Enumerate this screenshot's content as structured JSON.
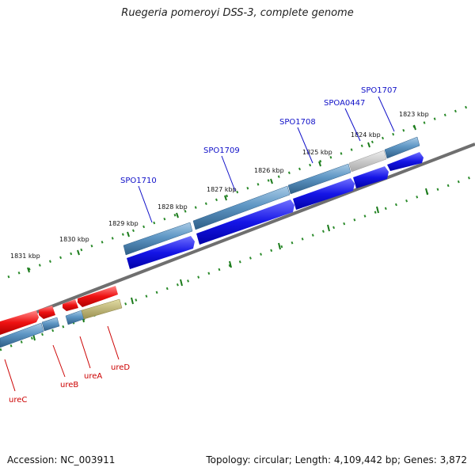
{
  "title": "Ruegeria pomeroyi DSS-3, complete genome",
  "footer": {
    "accession": "Accession: NC_003911",
    "genome_info": "Topology: circular; Length: 4,109,442 bp; Genes: 3,872"
  },
  "colors": {
    "forward_gene": "#1010e0",
    "reverse_gene": "#ee1111",
    "annotated_gene": "#4a86b8",
    "unannotated_gene": "#c0c0c0",
    "highlight_gene": "#b8b070",
    "backbone": "#777777",
    "tick": "#1a7a1a",
    "top_label": "#1010c8",
    "bottom_label": "#cc0000"
  },
  "scale_labels": [
    "1823 kbp",
    "1824 kbp",
    "1825 kbp",
    "1826 kbp",
    "1827 kbp",
    "1828 kbp",
    "1829 kbp",
    "1830 kbp",
    "1831 kbp"
  ],
  "top_genes": [
    {
      "name": "SPO1707"
    },
    {
      "name": "SPOA0447"
    },
    {
      "name": "SPO1708"
    },
    {
      "name": "SPO1709"
    },
    {
      "name": "SPO1710"
    }
  ],
  "bottom_genes": [
    {
      "name": "ureD"
    },
    {
      "name": "ureA"
    },
    {
      "name": "ureB"
    },
    {
      "name": "ureC"
    }
  ]
}
